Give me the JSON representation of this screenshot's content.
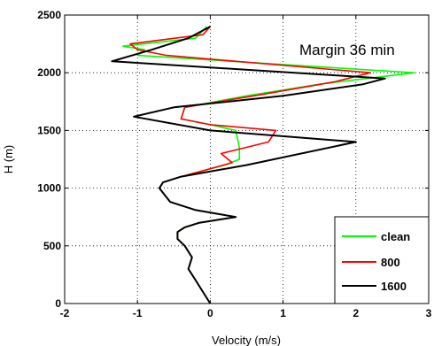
{
  "chart_data": {
    "type": "line",
    "title": "",
    "xlabel": "Velocity (m/s)",
    "ylabel": "H (m)",
    "xlim": [
      -2,
      3
    ],
    "ylim": [
      0,
      2500
    ],
    "xticks": [
      "-2",
      "-1",
      "0",
      "1",
      "2",
      "3"
    ],
    "yticks": [
      "0",
      "500",
      "1000",
      "1500",
      "2000",
      "2500"
    ],
    "grid": true,
    "legend_position": "bottom-right",
    "annotation": "Margin 36 min",
    "series": [
      {
        "name": "clean",
        "color": "#00ff00",
        "x": [
          0.0,
          -0.1,
          -0.2,
          -0.3,
          -0.25,
          -0.35,
          -0.45,
          -0.45,
          -0.35,
          -0.15,
          0.35,
          -0.2,
          -0.55,
          -0.7,
          -0.65,
          -0.4,
          0.2,
          0.4,
          0.4,
          0.35,
          0.0,
          -0.4,
          -0.35,
          0.5,
          1.5,
          2.8,
          -1.0,
          -0.9,
          -1.2,
          -0.2,
          -0.05
        ],
        "y": [
          0,
          100,
          200,
          300,
          400,
          500,
          560,
          620,
          660,
          700,
          750,
          810,
          880,
          1000,
          1050,
          1100,
          1200,
          1250,
          1350,
          1500,
          1550,
          1600,
          1700,
          1800,
          1900,
          2000,
          2150,
          2200,
          2230,
          2300,
          2400
        ]
      },
      {
        "name": "800",
        "color": "#ff0000",
        "x": [
          0.0,
          -0.1,
          -0.2,
          -0.3,
          -0.25,
          -0.35,
          -0.45,
          -0.45,
          -0.35,
          -0.15,
          0.35,
          -0.2,
          -0.55,
          -0.7,
          -0.65,
          -0.4,
          0.3,
          0.15,
          0.8,
          0.9,
          0.0,
          -0.4,
          -0.35,
          0.6,
          1.7,
          2.2,
          -0.6,
          -1.0,
          -1.1,
          -0.1,
          0.0
        ],
        "y": [
          0,
          100,
          200,
          300,
          400,
          500,
          560,
          620,
          660,
          700,
          750,
          810,
          880,
          1000,
          1050,
          1100,
          1220,
          1300,
          1400,
          1500,
          1550,
          1600,
          1700,
          1800,
          1920,
          2000,
          2150,
          2200,
          2250,
          2330,
          2400
        ]
      },
      {
        "name": "1600",
        "color": "#000000",
        "x": [
          0.0,
          -0.1,
          -0.2,
          -0.3,
          -0.25,
          -0.35,
          -0.45,
          -0.45,
          -0.35,
          -0.15,
          0.35,
          -0.2,
          -0.55,
          -0.7,
          -0.65,
          -0.4,
          0.5,
          2.0,
          0.0,
          -1.05,
          -0.5,
          1.0,
          2.1,
          2.4,
          -1.35,
          -0.8,
          -0.3,
          0.0
        ],
        "y": [
          0,
          100,
          200,
          300,
          400,
          500,
          560,
          620,
          660,
          700,
          750,
          810,
          880,
          1000,
          1050,
          1100,
          1200,
          1400,
          1500,
          1620,
          1700,
          1800,
          1900,
          1950,
          2100,
          2200,
          2300,
          2400
        ]
      }
    ]
  }
}
